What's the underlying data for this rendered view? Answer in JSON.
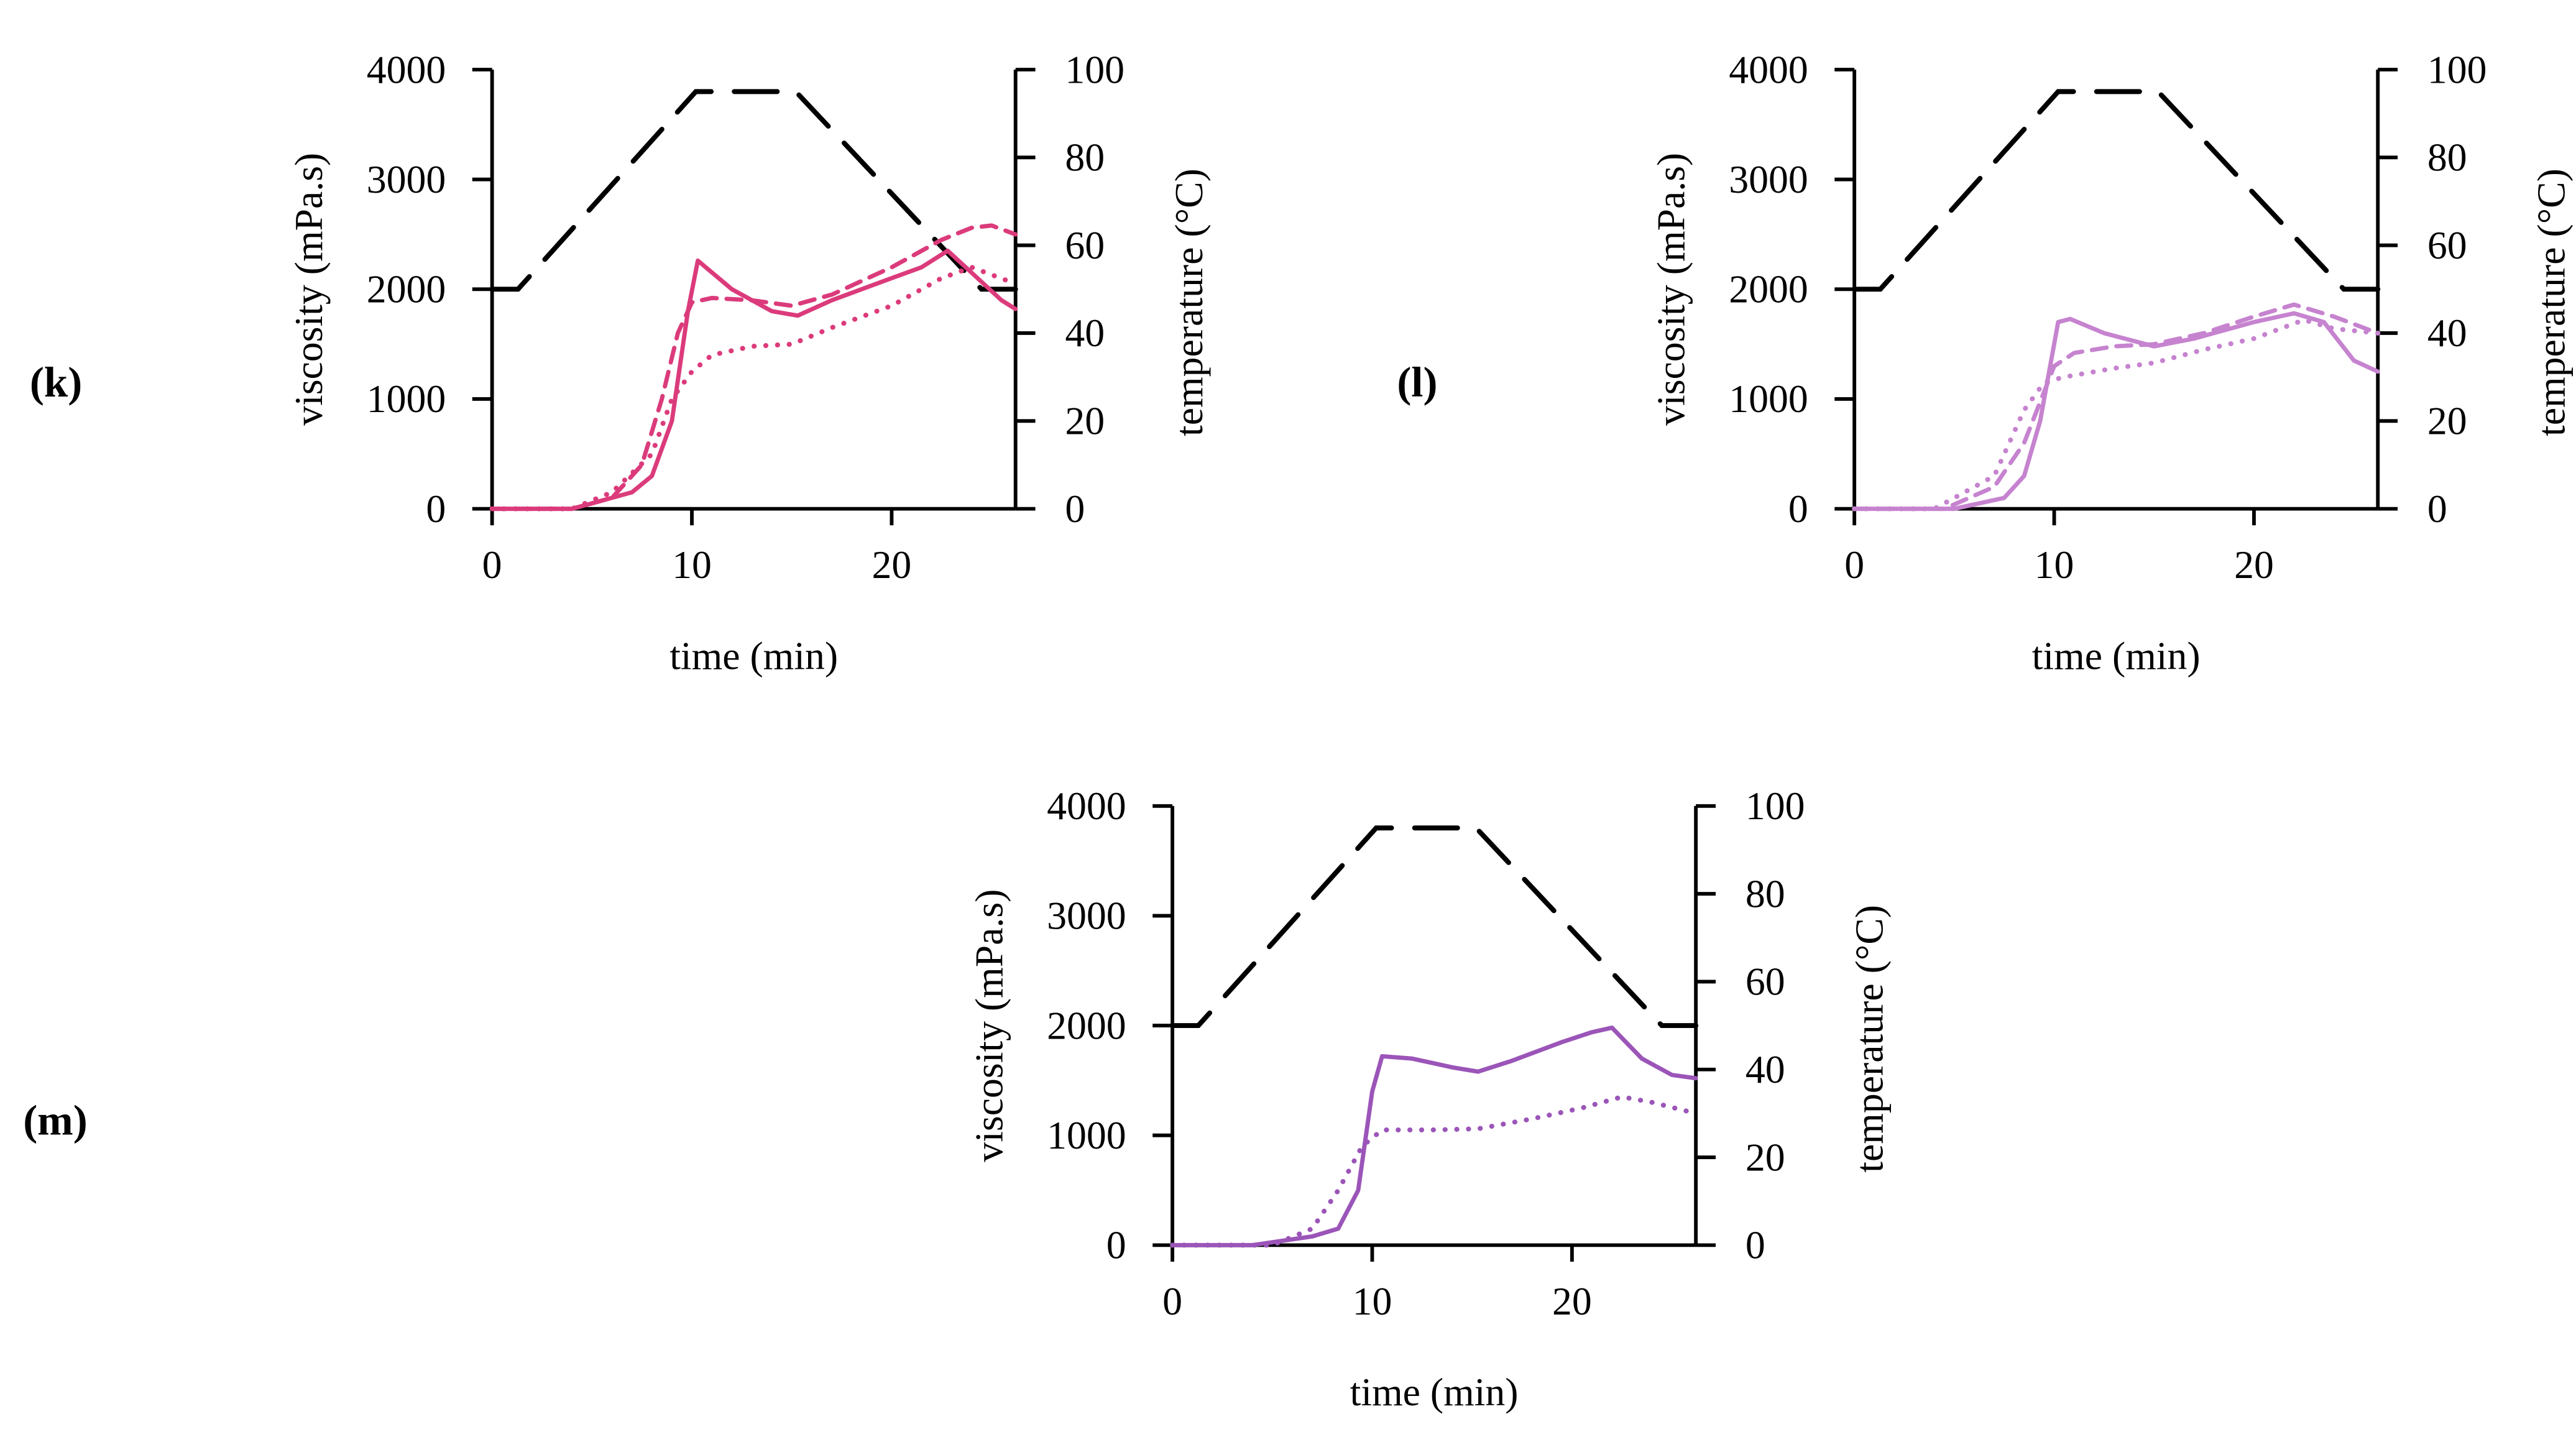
{
  "chart_data": [
    {
      "panel": "(k)",
      "type": "line",
      "xlabel": "time (min)",
      "ylabel": "viscosity (mPa.s)",
      "y2label": "temperature (°C)",
      "xlim": [
        0,
        26.2
      ],
      "ylim": [
        0,
        4000
      ],
      "y2lim": [
        0,
        100
      ],
      "xticks": [
        "0",
        "10",
        "20"
      ],
      "yticks": [
        "0",
        "1000",
        "2000",
        "3000",
        "4000"
      ],
      "y2ticks": [
        "0",
        "20",
        "40",
        "60",
        "80",
        "100"
      ],
      "color": "#DB3B7B",
      "temperature": {
        "t": [
          0,
          1.3,
          10.2,
          15.2,
          24.5,
          26.2
        ],
        "v": [
          50,
          50,
          95,
          95,
          50,
          50
        ]
      },
      "series": [
        {
          "style": "solid",
          "t": [
            0,
            4,
            5,
            7,
            8,
            9,
            9.8,
            10.3,
            12,
            14,
            15.3,
            17,
            20,
            21.5,
            22.8,
            24,
            25.5,
            26.2
          ],
          "v": [
            0,
            0,
            50,
            150,
            300,
            800,
            1800,
            2260,
            2000,
            1800,
            1760,
            1900,
            2100,
            2200,
            2350,
            2150,
            1900,
            1820
          ]
        },
        {
          "style": "dashed",
          "t": [
            0,
            4,
            6,
            7.5,
            8.5,
            9.3,
            10,
            11,
            13,
            15,
            17,
            20,
            22.5,
            24,
            25,
            26.2
          ],
          "v": [
            0,
            0,
            100,
            400,
            1000,
            1600,
            1880,
            1920,
            1900,
            1850,
            1950,
            2200,
            2450,
            2560,
            2580,
            2500
          ]
        },
        {
          "style": "dotted",
          "t": [
            0,
            4,
            6,
            8,
            9,
            10,
            11,
            13,
            15,
            17,
            20,
            22.5,
            24,
            26.2
          ],
          "v": [
            0,
            0,
            150,
            500,
            1000,
            1250,
            1400,
            1480,
            1500,
            1650,
            1850,
            2100,
            2200,
            2050
          ]
        }
      ]
    },
    {
      "panel": "(l)",
      "type": "line",
      "xlabel": "time (min)",
      "ylabel": "viscosity (mPa.s)",
      "y2label": "temperature (°C)",
      "xlim": [
        0,
        26.2
      ],
      "ylim": [
        0,
        4000
      ],
      "y2lim": [
        0,
        100
      ],
      "xticks": [
        "0",
        "10",
        "20"
      ],
      "yticks": [
        "0",
        "1000",
        "2000",
        "3000",
        "4000"
      ],
      "y2ticks": [
        "0",
        "20",
        "40",
        "60",
        "80",
        "100"
      ],
      "color": "#C683CF",
      "temperature": {
        "t": [
          0,
          1.3,
          10.2,
          15.2,
          24.5,
          26.2
        ],
        "v": [
          50,
          50,
          95,
          95,
          50,
          50
        ]
      },
      "series": [
        {
          "style": "solid",
          "t": [
            0,
            5,
            7.5,
            8.5,
            9.3,
            10.2,
            10.8,
            12.5,
            15,
            17,
            20,
            22,
            23.5,
            25,
            26.2
          ],
          "v": [
            0,
            0,
            100,
            300,
            800,
            1700,
            1730,
            1600,
            1480,
            1550,
            1700,
            1780,
            1700,
            1350,
            1250
          ]
        },
        {
          "style": "dashed",
          "t": [
            0,
            4.5,
            7,
            8.5,
            10,
            11,
            13,
            15,
            17.5,
            20,
            22,
            24,
            26.2
          ],
          "v": [
            0,
            0,
            200,
            600,
            1300,
            1420,
            1480,
            1500,
            1600,
            1750,
            1860,
            1750,
            1600
          ]
        },
        {
          "style": "dotted",
          "t": [
            0,
            4,
            7,
            8.5,
            9.5,
            10.5,
            13,
            15,
            17.5,
            20,
            22.5,
            24,
            26.2
          ],
          "v": [
            0,
            0,
            300,
            900,
            1150,
            1200,
            1280,
            1330,
            1450,
            1550,
            1720,
            1640,
            1600
          ]
        }
      ]
    },
    {
      "panel": "(m)",
      "type": "line",
      "xlabel": "time (min)",
      "ylabel": "viscosity (mPa.s)",
      "y2label": "temperature (°C)",
      "xlim": [
        0,
        26.2
      ],
      "ylim": [
        0,
        4000
      ],
      "y2lim": [
        0,
        100
      ],
      "xticks": [
        "0",
        "10",
        "20"
      ],
      "yticks": [
        "0",
        "1000",
        "2000",
        "3000",
        "4000"
      ],
      "y2ticks": [
        "0",
        "20",
        "40",
        "60",
        "80",
        "100"
      ],
      "color": "#9B55B8",
      "temperature": {
        "t": [
          0,
          1.3,
          10.2,
          15.2,
          24.5,
          26.2
        ],
        "v": [
          50,
          50,
          95,
          95,
          50,
          50
        ]
      },
      "series": [
        {
          "style": "solid",
          "t": [
            0,
            4,
            7,
            8.3,
            9.3,
            10,
            10.5,
            12,
            14,
            15.3,
            17,
            19.5,
            21,
            22,
            23.5,
            25,
            26.2
          ],
          "v": [
            0,
            0,
            80,
            150,
            500,
            1400,
            1720,
            1700,
            1620,
            1580,
            1680,
            1850,
            1940,
            1980,
            1700,
            1550,
            1520
          ]
        },
        {
          "style": "dotted",
          "t": [
            0,
            5,
            7,
            8.3,
            9.5,
            10.5,
            13,
            15.3,
            18,
            20.5,
            22.5,
            24,
            26.2
          ],
          "v": [
            0,
            0,
            150,
            500,
            900,
            1050,
            1050,
            1060,
            1150,
            1250,
            1350,
            1300,
            1200
          ]
        }
      ]
    }
  ]
}
